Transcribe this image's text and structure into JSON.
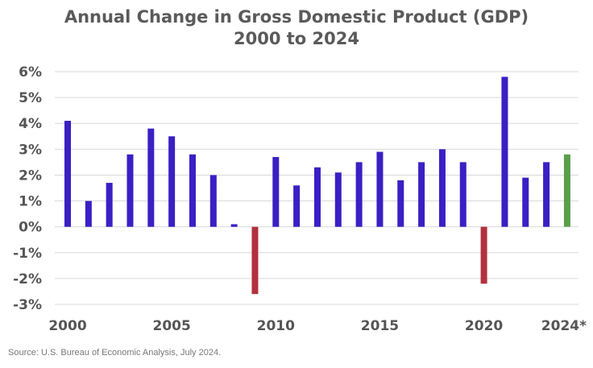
{
  "chart_data": {
    "type": "bar",
    "title": "Annual Change in Gross Domestic Product (GDP)",
    "subtitle": "2000 to 2024",
    "xlabel": "",
    "ylabel": "",
    "ylim": [
      -3,
      6
    ],
    "yticks": [
      "6%",
      "5%",
      "4%",
      "3%",
      "2%",
      "1%",
      "0%",
      "-1%",
      "-2%",
      "-3%"
    ],
    "ytick_values": [
      6,
      5,
      4,
      3,
      2,
      1,
      0,
      -1,
      -2,
      -3
    ],
    "grid": true,
    "legend": "none",
    "categories": [
      "2000",
      "2001",
      "2002",
      "2003",
      "2004",
      "2005",
      "2006",
      "2007",
      "2008",
      "2009",
      "2010",
      "2011",
      "2012",
      "2013",
      "2014",
      "2015",
      "2016",
      "2017",
      "2018",
      "2019",
      "2020",
      "2021",
      "2022",
      "2023",
      "2024*"
    ],
    "values": [
      4.1,
      1.0,
      1.7,
      2.8,
      3.8,
      3.5,
      2.8,
      2.0,
      0.1,
      -2.6,
      2.7,
      1.6,
      2.3,
      2.1,
      2.5,
      2.9,
      1.8,
      2.5,
      3.0,
      2.5,
      -2.2,
      5.8,
      1.9,
      2.5,
      2.8
    ],
    "xtick_labels": [
      {
        "index": 0,
        "label": "2000"
      },
      {
        "index": 5,
        "label": "2005"
      },
      {
        "index": 10,
        "label": "2010"
      },
      {
        "index": 15,
        "label": "2015"
      },
      {
        "index": 20,
        "label": "2020"
      },
      {
        "index": 24,
        "label": "2024*"
      }
    ],
    "colors": {
      "positive": "#3a1fc4",
      "negative": "#b2313e",
      "projected": "#5a9e4b",
      "grid": "#d9d9d9"
    }
  },
  "footer": {
    "source": "Source: U.S. Bureau of Economic Analysis, July 2024."
  }
}
